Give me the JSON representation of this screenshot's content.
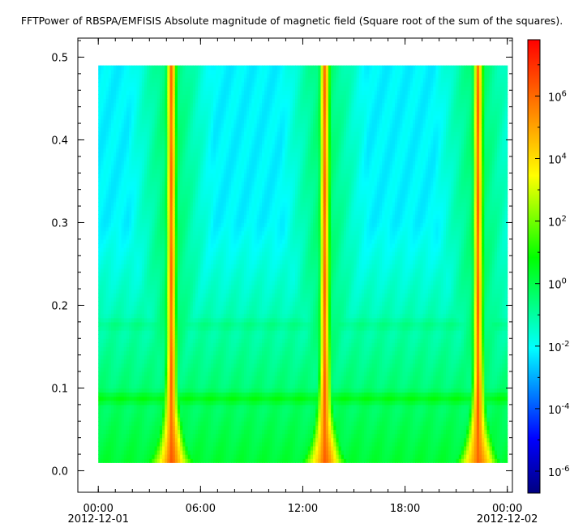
{
  "chart_data": {
    "type": "heatmap",
    "title": "FFTPower of RBSPA/EMFISIS  Absolute magnitude of magnetic field (Square root of the sum of the squares).",
    "xlabel": "",
    "ylabel": "",
    "x_axis": {
      "unit": "hours since 2012-12-01 00:00",
      "range": [
        -1.2,
        24.3
      ],
      "ticks": [
        {
          "value": 0,
          "label": "00:00",
          "sublabel": "2012-12-01"
        },
        {
          "value": 6,
          "label": "06:00",
          "sublabel": ""
        },
        {
          "value": 12,
          "label": "12:00",
          "sublabel": ""
        },
        {
          "value": 18,
          "label": "18:00",
          "sublabel": ""
        },
        {
          "value": 24,
          "label": "00:00",
          "sublabel": "2012-12-02"
        }
      ],
      "minor_step": 1
    },
    "y_axis": {
      "range": [
        -0.026,
        0.523
      ],
      "ticks": [
        0.0,
        0.1,
        0.2,
        0.3,
        0.4,
        0.5
      ],
      "tick_labels": [
        "0.0",
        "0.1",
        "0.2",
        "0.3",
        "0.4",
        "0.5"
      ],
      "minor_step": 0.02
    },
    "data_extent": {
      "x": [
        0,
        24
      ],
      "y": [
        0.01,
        0.49
      ]
    },
    "colorbar": {
      "scale": "log",
      "range_exponent": [
        -6.7,
        7.8
      ],
      "ticks": [
        {
          "exponent": 6,
          "base": "10",
          "sup": "6"
        },
        {
          "exponent": 4,
          "base": "10",
          "sup": "4"
        },
        {
          "exponent": 2,
          "base": "10",
          "sup": "2"
        },
        {
          "exponent": 0,
          "base": "10",
          "sup": "0"
        },
        {
          "exponent": -2,
          "base": "10",
          "sup": "-2"
        },
        {
          "exponent": -4,
          "base": "10",
          "sup": "-4"
        },
        {
          "exponent": -6,
          "base": "10",
          "sup": "-6"
        }
      ],
      "colormap": [
        "#000080",
        "#0000ff",
        "#00ffff",
        "#00ff00",
        "#ffff00",
        "#ff0000"
      ]
    },
    "perigee_peaks_hours": [
      4.3,
      13.3,
      22.3
    ],
    "harmonic_bands_y": [
      0.088,
      0.177
    ],
    "approx_log_power": {
      "background_high_freq": -2.3,
      "background_low_freq": 0.3,
      "band_0p088": 1.0,
      "band_0p177": 0.4,
      "perigee_peak": 6.2
    }
  }
}
